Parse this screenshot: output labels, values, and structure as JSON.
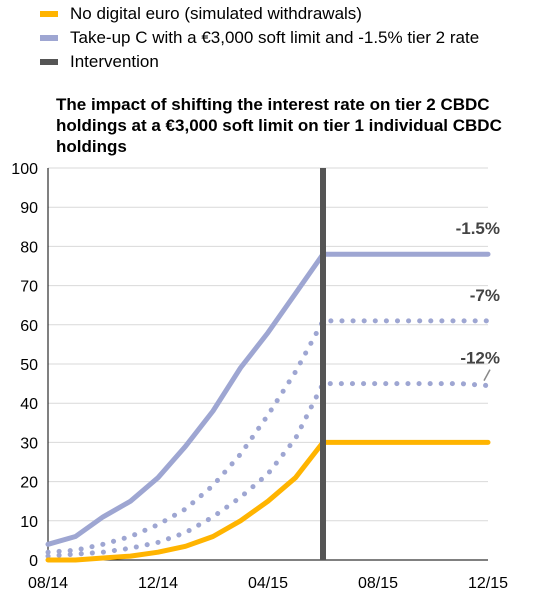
{
  "chart_data": {
    "type": "line",
    "title": "The impact of shifting the interest rate on tier 2 CBDC holdings at a €3,000 soft limit on tier 1 individual CBDC holdings",
    "xlabel": "",
    "ylabel": "",
    "x_tick_labels": [
      "08/14",
      "12/14",
      "04/15",
      "08/15",
      "12/15"
    ],
    "y_ticks": [
      0,
      10,
      20,
      30,
      40,
      50,
      60,
      70,
      80,
      90,
      100
    ],
    "ylim": [
      0,
      100
    ],
    "grid": "horizontal",
    "legend_placement": "top-left",
    "legend": [
      {
        "label": "No digital euro (simulated withdrawals)",
        "color": "#FFB400"
      },
      {
        "label": "Take-up C with a €3,000 soft limit and -1.5% tier 2 rate",
        "color": "#9EA6D2"
      },
      {
        "label": "Intervention",
        "color": "#555555"
      }
    ],
    "intervention_month": 10,
    "months": [
      0,
      1,
      2,
      3,
      4,
      5,
      6,
      7,
      8,
      9,
      10,
      11,
      12,
      13,
      14,
      15,
      16
    ],
    "series": [
      {
        "name": "No digital euro (simulated withdrawals)",
        "color": "#FFB400",
        "style": "solid",
        "values": [
          0,
          0,
          0.5,
          1,
          2,
          3.5,
          6,
          10,
          15,
          21,
          30,
          30,
          30,
          30,
          30,
          30,
          30
        ]
      },
      {
        "name": "Take-up C with a €3,000 soft limit and -1.5% tier 2 rate",
        "color": "#9EA6D2",
        "style": "solid",
        "values": [
          4,
          6,
          11,
          15,
          21,
          29,
          38,
          49,
          58,
          68,
          78,
          78,
          78,
          78,
          78,
          78,
          78
        ]
      },
      {
        "name": "",
        "color": "#9EA6D2",
        "style": "dotted",
        "values": [
          2,
          2.5,
          4,
          6,
          9,
          13,
          19,
          27,
          37,
          48,
          61,
          61,
          61,
          61,
          61,
          61,
          61
        ]
      },
      {
        "name": "",
        "color": "#9EA6D2",
        "style": "dotted",
        "values": [
          1,
          1.5,
          2,
          3,
          4.5,
          7,
          11,
          16,
          22,
          31,
          45,
          45,
          45,
          45,
          45,
          45,
          44.5
        ]
      }
    ],
    "annotations": [
      {
        "text": "-1.5%",
        "y": 78
      },
      {
        "text": "-7%",
        "y": 61
      },
      {
        "text": "-12%",
        "y": 45
      }
    ]
  }
}
